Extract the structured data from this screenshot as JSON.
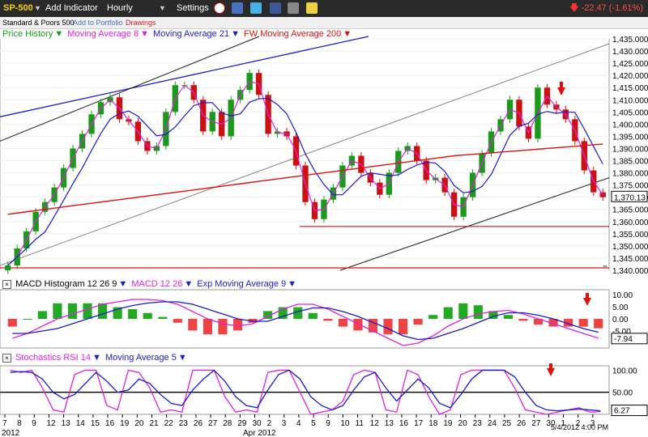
{
  "toolbar": {
    "symbol": "SP-500",
    "add_indicator": "Add Indicator",
    "interval": "Hourly",
    "settings": "Settings",
    "quote_change": "-22.47 (-1.61%)"
  },
  "subbar": {
    "name": "Standard & Poors 500",
    "add_portfolio": "Add to Portfolio",
    "drawings": "Drawings"
  },
  "colors": {
    "up_candle": "#1a9a1a",
    "down_candle": "#cc1111",
    "ma8": "#e020e0",
    "ma21": "#1a1acc",
    "ma200": "#dd1111",
    "trend_black": "#222222",
    "trend_gray": "#888888",
    "hist_pos": "#22aa22",
    "hist_neg": "#ee4444",
    "arrow": "#dd1111"
  },
  "chart_data": [
    {
      "type": "candlestick",
      "panel": "price",
      "legend": [
        "Price History",
        "Moving Average 8",
        "Moving Average 21",
        "FW Moving Average 200"
      ],
      "ylim": [
        1340,
        1435
      ],
      "yticks": [
        1340,
        1345,
        1350,
        1355,
        1360,
        1365,
        1370,
        1375,
        1380,
        1385,
        1390,
        1395,
        1400,
        1405,
        1410,
        1415,
        1420,
        1425,
        1430,
        1435
      ],
      "last_value": "1,370.13",
      "x_dates": [
        "7",
        "8",
        "9",
        "12",
        "13",
        "14",
        "15",
        "16",
        "19",
        "20",
        "21",
        "22",
        "23",
        "26",
        "27",
        "28",
        "29",
        "30",
        "2",
        "3",
        "4",
        "5",
        "9",
        "10",
        "11",
        "12",
        "13",
        "16",
        "17",
        "18",
        "19",
        "20",
        "23",
        "24",
        "25",
        "26",
        "27",
        "30",
        "1",
        "2",
        "3"
      ],
      "x_month_labels": [
        "2012",
        "Apr 2012"
      ],
      "x_last_label": "5/4/2012 4:00 PM",
      "closes": [
        1342,
        1349,
        1356,
        1364,
        1368,
        1374,
        1382,
        1390,
        1396,
        1404,
        1409,
        1411,
        1402,
        1401,
        1393,
        1389,
        1391,
        1405,
        1416,
        1416,
        1410,
        1397,
        1405,
        1395,
        1410,
        1414,
        1421,
        1412,
        1396,
        1397,
        1395,
        1383,
        1368,
        1361,
        1369,
        1374,
        1383,
        1387,
        1380,
        1376,
        1371,
        1380,
        1389,
        1391,
        1385,
        1377,
        1378,
        1372,
        1362,
        1370,
        1380,
        1388,
        1397,
        1402,
        1410,
        1399,
        1394,
        1415,
        1408,
        1406,
        1402,
        1393,
        1381,
        1372,
        1370
      ],
      "support_lines": [
        1358,
        1341
      ]
    },
    {
      "type": "bar+line",
      "panel": "macd",
      "legend": [
        "MACD Histogram 12 26 9",
        "MACD 12 26",
        "Exp Moving Average 9"
      ],
      "ylim": [
        -12,
        12
      ],
      "yticks": [
        10,
        5,
        0,
        -5
      ],
      "ytick_labels": [
        "10.00",
        "5.00",
        "0.00",
        "-5.00"
      ],
      "last_value": "-7.94",
      "macd": [
        -8,
        -6,
        -3,
        0,
        2,
        4,
        6,
        7,
        8,
        8,
        7.5,
        6,
        3,
        0,
        -2,
        -3,
        -2,
        1,
        4,
        6,
        6,
        4,
        1,
        -2,
        -5,
        -8,
        -11,
        -10,
        -7,
        -3,
        0,
        2,
        3,
        3.5,
        2,
        0,
        -2,
        -4,
        -6,
        -7.94
      ],
      "signal": [
        -6,
        -6,
        -5,
        -4,
        -2,
        0,
        2,
        4,
        5.5,
        6.5,
        7,
        7,
        6,
        4,
        2,
        0,
        -1,
        -1,
        1,
        3,
        4.5,
        4.5,
        3,
        1,
        -1.5,
        -4,
        -7,
        -8.5,
        -8,
        -6,
        -4,
        -1.5,
        1,
        2.5,
        2.5,
        1.5,
        0,
        -2,
        -4,
        -5.5
      ]
    },
    {
      "type": "line",
      "panel": "stochrsi",
      "legend": [
        "Stochastics RSI 14",
        "Moving Average 5"
      ],
      "ylim": [
        0,
        110
      ],
      "yticks": [
        100,
        50
      ],
      "ytick_labels": [
        "100.00",
        "50.00"
      ],
      "reference_line": 50,
      "last_value": "6.27",
      "stoch": [
        100,
        95,
        100,
        60,
        10,
        5,
        90,
        100,
        100,
        20,
        10,
        100,
        95,
        60,
        5,
        10,
        5,
        100,
        100,
        100,
        40,
        5,
        10,
        5,
        95,
        100,
        100,
        50,
        0,
        5,
        10,
        30,
        90,
        100,
        95,
        10,
        5,
        100,
        90,
        40,
        0,
        10,
        90,
        100,
        100,
        100,
        100,
        60,
        10,
        5,
        0,
        5,
        10,
        15,
        5,
        6.27
      ],
      "ma5": [
        95,
        97,
        95,
        80,
        50,
        35,
        45,
        70,
        95,
        75,
        50,
        55,
        80,
        70,
        45,
        25,
        20,
        55,
        80,
        100,
        75,
        40,
        20,
        15,
        55,
        90,
        100,
        80,
        40,
        20,
        10,
        20,
        55,
        85,
        95,
        60,
        30,
        55,
        80,
        60,
        25,
        15,
        45,
        80,
        100,
        100,
        100,
        85,
        50,
        20,
        10,
        8,
        10,
        12,
        10,
        8
      ]
    }
  ]
}
